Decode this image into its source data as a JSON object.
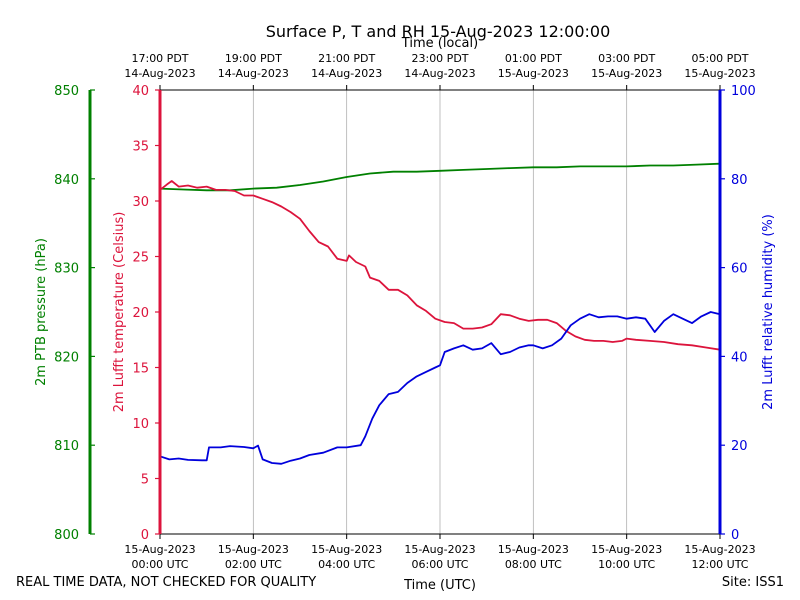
{
  "chart_data": {
    "type": "line",
    "title": "Surface P, T and RH 15-Aug-2023 12:00:00",
    "top_xlabel": "Time (local)",
    "xlabel": "Time (UTC)",
    "xlim_hours_utc": [
      0,
      12
    ],
    "vertical_grid": true,
    "local_ticks": [
      {
        "hour": 0,
        "time": "17:00 PDT",
        "date": "14-Aug-2023"
      },
      {
        "hour": 2,
        "time": "19:00 PDT",
        "date": "14-Aug-2023"
      },
      {
        "hour": 4,
        "time": "21:00 PDT",
        "date": "14-Aug-2023"
      },
      {
        "hour": 6,
        "time": "23:00 PDT",
        "date": "14-Aug-2023"
      },
      {
        "hour": 8,
        "time": "01:00 PDT",
        "date": "15-Aug-2023"
      },
      {
        "hour": 10,
        "time": "03:00 PDT",
        "date": "15-Aug-2023"
      },
      {
        "hour": 12,
        "time": "05:00 PDT",
        "date": "15-Aug-2023"
      }
    ],
    "utc_ticks": [
      {
        "hour": 0,
        "date": "15-Aug-2023",
        "time": "00:00 UTC"
      },
      {
        "hour": 2,
        "date": "15-Aug-2023",
        "time": "02:00 UTC"
      },
      {
        "hour": 4,
        "date": "15-Aug-2023",
        "time": "04:00 UTC"
      },
      {
        "hour": 6,
        "date": "15-Aug-2023",
        "time": "06:00 UTC"
      },
      {
        "hour": 8,
        "date": "15-Aug-2023",
        "time": "08:00 UTC"
      },
      {
        "hour": 10,
        "date": "15-Aug-2023",
        "time": "10:00 UTC"
      },
      {
        "hour": 12,
        "date": "15-Aug-2023",
        "time": "12:00 UTC"
      }
    ],
    "series": [
      {
        "name": "pressure",
        "axis_label": "2m PTB pressure (hPa)",
        "color": "#008000",
        "ylim": [
          800,
          850
        ],
        "ticks": [
          800,
          810,
          820,
          830,
          840,
          850
        ],
        "points": [
          [
            0,
            838.9
          ],
          [
            0.5,
            838.8
          ],
          [
            1,
            838.7
          ],
          [
            1.5,
            838.7
          ],
          [
            2,
            838.9
          ],
          [
            2.5,
            839.0
          ],
          [
            3,
            839.3
          ],
          [
            3.5,
            839.7
          ],
          [
            4,
            840.2
          ],
          [
            4.5,
            840.6
          ],
          [
            5,
            840.8
          ],
          [
            5.5,
            840.8
          ],
          [
            6,
            840.9
          ],
          [
            6.5,
            841.0
          ],
          [
            7,
            841.1
          ],
          [
            7.5,
            841.2
          ],
          [
            8,
            841.3
          ],
          [
            8.5,
            841.3
          ],
          [
            9,
            841.4
          ],
          [
            9.5,
            841.4
          ],
          [
            10,
            841.4
          ],
          [
            10.5,
            841.5
          ],
          [
            11,
            841.5
          ],
          [
            11.5,
            841.6
          ],
          [
            12,
            841.7
          ]
        ]
      },
      {
        "name": "temperature",
        "axis_label": "2m Lufft temperature (Celsius)",
        "color": "#dc143c",
        "ylim": [
          0,
          40
        ],
        "ticks": [
          0,
          5,
          10,
          15,
          20,
          25,
          30,
          35,
          40
        ],
        "points": [
          [
            0,
            31.0
          ],
          [
            0.15,
            31.5
          ],
          [
            0.25,
            31.8
          ],
          [
            0.4,
            31.3
          ],
          [
            0.6,
            31.4
          ],
          [
            0.8,
            31.2
          ],
          [
            1.0,
            31.3
          ],
          [
            1.2,
            31.0
          ],
          [
            1.4,
            31.0
          ],
          [
            1.6,
            30.9
          ],
          [
            1.8,
            30.5
          ],
          [
            2.0,
            30.5
          ],
          [
            2.2,
            30.2
          ],
          [
            2.4,
            29.9
          ],
          [
            2.6,
            29.5
          ],
          [
            2.8,
            29.0
          ],
          [
            3.0,
            28.4
          ],
          [
            3.2,
            27.3
          ],
          [
            3.4,
            26.3
          ],
          [
            3.6,
            25.9
          ],
          [
            3.8,
            24.8
          ],
          [
            4.0,
            24.6
          ],
          [
            4.05,
            25.1
          ],
          [
            4.2,
            24.5
          ],
          [
            4.4,
            24.1
          ],
          [
            4.5,
            23.1
          ],
          [
            4.7,
            22.8
          ],
          [
            4.9,
            22.0
          ],
          [
            5.1,
            22.0
          ],
          [
            5.3,
            21.5
          ],
          [
            5.5,
            20.6
          ],
          [
            5.7,
            20.1
          ],
          [
            5.9,
            19.4
          ],
          [
            6.1,
            19.1
          ],
          [
            6.3,
            19.0
          ],
          [
            6.5,
            18.5
          ],
          [
            6.7,
            18.5
          ],
          [
            6.9,
            18.6
          ],
          [
            7.1,
            18.9
          ],
          [
            7.3,
            19.8
          ],
          [
            7.5,
            19.7
          ],
          [
            7.7,
            19.4
          ],
          [
            7.9,
            19.2
          ],
          [
            8.1,
            19.3
          ],
          [
            8.3,
            19.3
          ],
          [
            8.5,
            19.0
          ],
          [
            8.7,
            18.3
          ],
          [
            8.9,
            17.8
          ],
          [
            9.1,
            17.5
          ],
          [
            9.3,
            17.4
          ],
          [
            9.5,
            17.4
          ],
          [
            9.7,
            17.3
          ],
          [
            9.9,
            17.4
          ],
          [
            10.0,
            17.6
          ],
          [
            10.2,
            17.5
          ],
          [
            10.5,
            17.4
          ],
          [
            10.8,
            17.3
          ],
          [
            11.1,
            17.1
          ],
          [
            11.4,
            17.0
          ],
          [
            11.7,
            16.8
          ],
          [
            12,
            16.6
          ]
        ]
      },
      {
        "name": "relative humidity",
        "axis_label": "2m Lufft relative humidity (%)",
        "color": "#0000dc",
        "ylim": [
          0,
          100
        ],
        "ticks": [
          0,
          20,
          40,
          60,
          80,
          100
        ],
        "points": [
          [
            0,
            17.5
          ],
          [
            0.2,
            16.8
          ],
          [
            0.4,
            17.0
          ],
          [
            0.6,
            16.7
          ],
          [
            0.9,
            16.6
          ],
          [
            1.0,
            16.6
          ],
          [
            1.05,
            19.5
          ],
          [
            1.3,
            19.5
          ],
          [
            1.5,
            19.8
          ],
          [
            1.8,
            19.6
          ],
          [
            2.0,
            19.3
          ],
          [
            2.1,
            19.9
          ],
          [
            2.2,
            16.8
          ],
          [
            2.4,
            16.0
          ],
          [
            2.6,
            15.8
          ],
          [
            2.8,
            16.5
          ],
          [
            3.0,
            17.0
          ],
          [
            3.2,
            17.8
          ],
          [
            3.5,
            18.3
          ],
          [
            3.8,
            19.5
          ],
          [
            4.0,
            19.5
          ],
          [
            4.3,
            20.0
          ],
          [
            4.4,
            22.0
          ],
          [
            4.55,
            26.0
          ],
          [
            4.7,
            29.0
          ],
          [
            4.9,
            31.5
          ],
          [
            5.1,
            32.0
          ],
          [
            5.3,
            34.0
          ],
          [
            5.5,
            35.5
          ],
          [
            5.7,
            36.5
          ],
          [
            5.9,
            37.5
          ],
          [
            6.0,
            38.0
          ],
          [
            6.1,
            41.0
          ],
          [
            6.3,
            41.8
          ],
          [
            6.5,
            42.5
          ],
          [
            6.7,
            41.5
          ],
          [
            6.9,
            41.8
          ],
          [
            7.1,
            43.0
          ],
          [
            7.3,
            40.5
          ],
          [
            7.5,
            41.0
          ],
          [
            7.7,
            42.0
          ],
          [
            7.9,
            42.5
          ],
          [
            8.0,
            42.5
          ],
          [
            8.2,
            41.8
          ],
          [
            8.4,
            42.5
          ],
          [
            8.6,
            44.0
          ],
          [
            8.8,
            47.0
          ],
          [
            9.0,
            48.5
          ],
          [
            9.2,
            49.5
          ],
          [
            9.4,
            48.8
          ],
          [
            9.6,
            49.0
          ],
          [
            9.8,
            49.0
          ],
          [
            10.0,
            48.5
          ],
          [
            10.2,
            48.8
          ],
          [
            10.4,
            48.5
          ],
          [
            10.6,
            45.5
          ],
          [
            10.8,
            48.0
          ],
          [
            11.0,
            49.5
          ],
          [
            11.2,
            48.5
          ],
          [
            11.4,
            47.5
          ],
          [
            11.6,
            49.0
          ],
          [
            11.8,
            50.0
          ],
          [
            12,
            49.5
          ]
        ]
      }
    ]
  },
  "footer": {
    "left": "REAL TIME DATA, NOT CHECKED FOR QUALITY",
    "right": "Site: ISS1"
  }
}
